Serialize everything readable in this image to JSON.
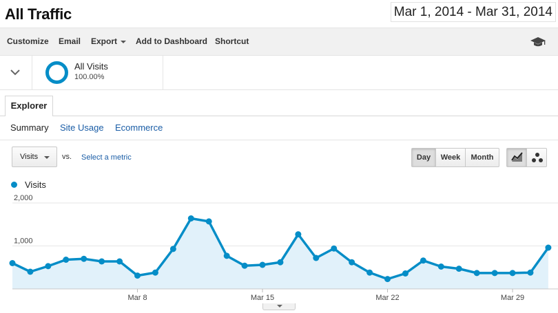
{
  "header": {
    "title": "All Traffic",
    "date_range": "Mar 1, 2014 - Mar 31, 2014"
  },
  "toolbar": {
    "customize": "Customize",
    "email": "Email",
    "export": "Export",
    "add_to_dashboard": "Add to Dashboard",
    "shortcut": "Shortcut",
    "help_icon": "graduation-cap-icon"
  },
  "segment": {
    "name": "All Visits",
    "percent": "100.00%",
    "color": "#058dc7"
  },
  "tabs": {
    "explorer": "Explorer"
  },
  "subtabs": [
    "Summary",
    "Site Usage",
    "Ecommerce"
  ],
  "controls": {
    "metric": "Visits",
    "vs": "vs.",
    "select_metric": "Select a metric",
    "granularity": [
      "Day",
      "Week",
      "Month"
    ],
    "granularity_selected": "Day",
    "views": [
      "line-chart-icon",
      "motion-chart-icon"
    ]
  },
  "chart_data": {
    "type": "area",
    "series": [
      {
        "name": "Visits",
        "color": "#058dc7",
        "x": [
          "Mar 1",
          "Mar 2",
          "Mar 3",
          "Mar 4",
          "Mar 5",
          "Mar 6",
          "Mar 7",
          "Mar 8",
          "Mar 9",
          "Mar 10",
          "Mar 11",
          "Mar 12",
          "Mar 13",
          "Mar 14",
          "Mar 15",
          "Mar 16",
          "Mar 17",
          "Mar 18",
          "Mar 19",
          "Mar 20",
          "Mar 21",
          "Mar 22",
          "Mar 23",
          "Mar 24",
          "Mar 25",
          "Mar 26",
          "Mar 27",
          "Mar 28",
          "Mar 29",
          "Mar 30",
          "Mar 31"
        ],
        "values": [
          600,
          400,
          530,
          680,
          700,
          640,
          640,
          310,
          380,
          930,
          1640,
          1570,
          770,
          540,
          560,
          620,
          1270,
          720,
          940,
          620,
          380,
          230,
          360,
          660,
          520,
          470,
          370,
          370,
          370,
          380,
          960
        ]
      }
    ],
    "xtick_labels": [
      "Mar 8",
      "Mar 15",
      "Mar 22",
      "Mar 29"
    ],
    "ytick_labels": [
      "2,000",
      "1,000"
    ],
    "ylim": [
      0,
      2000
    ],
    "grid": true,
    "legend": "top-left"
  }
}
